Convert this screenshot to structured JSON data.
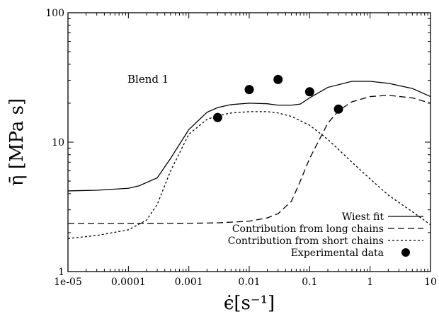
{
  "chart_data": {
    "type": "line",
    "title": "",
    "xlabel": "ϵ̇[s⁻¹]",
    "ylabel": "η̄ [MPa s]",
    "xscale": "log",
    "yscale": "log",
    "xlim": [
      1e-05,
      10
    ],
    "ylim": [
      1,
      100
    ],
    "x_ticks": [
      "1e-05",
      "0.0001",
      "0.001",
      "0.01",
      "0.1",
      "1",
      "10"
    ],
    "y_ticks": [
      "1",
      "10",
      "100"
    ],
    "annotation": "Blend 1",
    "legend_position": "bottom-right",
    "series": [
      {
        "name": "Wiest fit",
        "style": "solid",
        "x": [
          1e-05,
          3e-05,
          0.0001,
          0.00015,
          0.0003,
          0.0005,
          0.001,
          0.002,
          0.003,
          0.005,
          0.01,
          0.02,
          0.03,
          0.05,
          0.07,
          0.1,
          0.2,
          0.5,
          1,
          2,
          5,
          10
        ],
        "y": [
          4.2,
          4.25,
          4.4,
          4.6,
          5.3,
          7.5,
          12.5,
          17,
          18.5,
          19.5,
          20,
          19.8,
          19.3,
          19.3,
          19.7,
          22,
          26.5,
          29.5,
          29.5,
          28.5,
          26,
          22.5
        ]
      },
      {
        "name": "Contribution from long chains",
        "style": "dashed",
        "x": [
          1e-05,
          0.0001,
          0.001,
          0.003,
          0.01,
          0.02,
          0.03,
          0.05,
          0.07,
          0.1,
          0.2,
          0.3,
          0.5,
          1,
          2,
          5,
          10
        ],
        "y": [
          2.35,
          2.35,
          2.36,
          2.38,
          2.45,
          2.6,
          2.8,
          3.5,
          5,
          7.5,
          14,
          17.5,
          20.5,
          22.5,
          23,
          22,
          20
        ]
      },
      {
        "name": "Contribution from short chains",
        "style": "dotted",
        "x": [
          1e-05,
          3e-05,
          0.0001,
          0.0002,
          0.0003,
          0.0005,
          0.001,
          0.002,
          0.003,
          0.005,
          0.01,
          0.02,
          0.03,
          0.05,
          0.1,
          0.2,
          0.5,
          1,
          2,
          5,
          10
        ],
        "y": [
          1.8,
          1.9,
          2.1,
          2.5,
          3.3,
          6,
          11.5,
          15,
          16,
          16.8,
          17.2,
          17.2,
          16.8,
          15.8,
          13.5,
          10.5,
          7,
          5.2,
          3.9,
          2.9,
          2.3
        ]
      }
    ],
    "experimental": {
      "name": "Experimental data",
      "x": [
        0.003,
        0.01,
        0.03,
        0.1,
        0.3
      ],
      "y": [
        15.5,
        25.5,
        30.5,
        24.5,
        18
      ]
    }
  }
}
